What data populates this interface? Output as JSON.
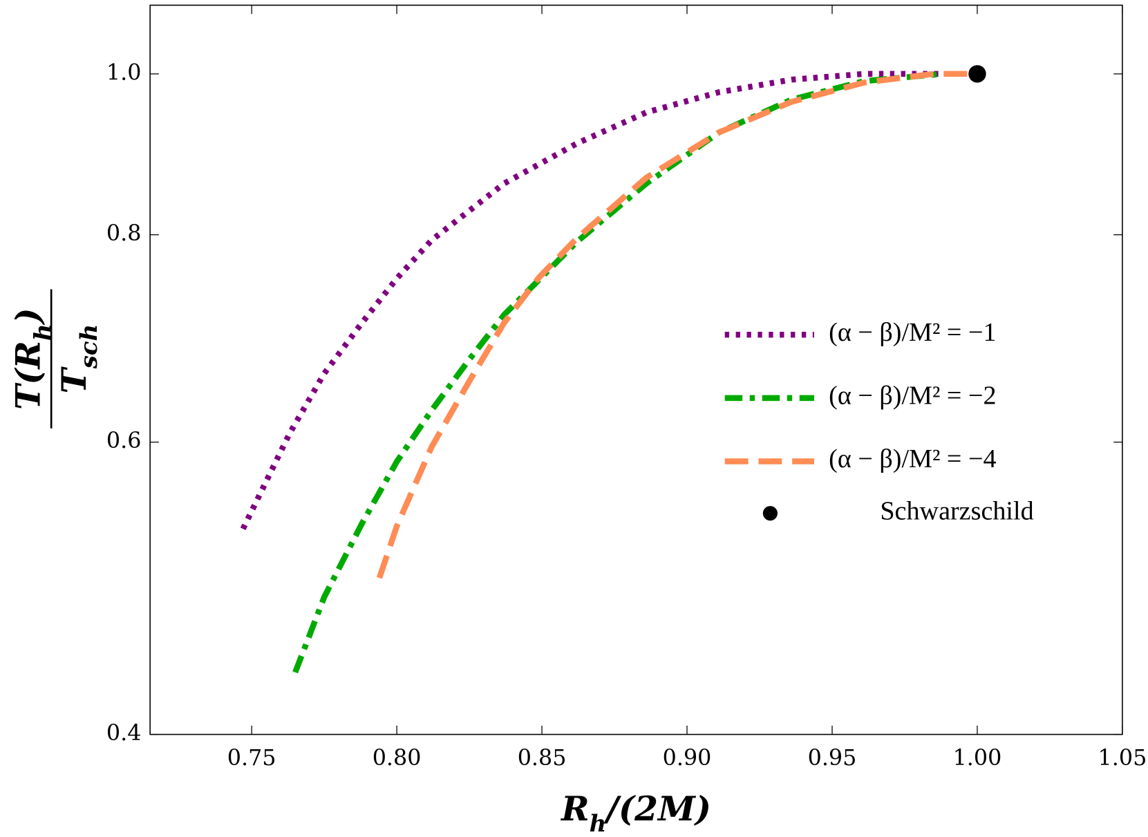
{
  "chart_data": {
    "type": "line",
    "xlabel": [
      "R",
      "h",
      "/(2M)"
    ],
    "ylabel": {
      "numerator": [
        "T(R",
        "h",
        ")"
      ],
      "denominator": [
        "T",
        "sch"
      ]
    },
    "xlim": [
      0.715,
      1.05
    ],
    "ylim": [
      0.4,
      1.1
    ],
    "yscale": "log",
    "xticks": [
      {
        "value": 0.75,
        "label": "0.75"
      },
      {
        "value": 0.8,
        "label": "0.80"
      },
      {
        "value": 0.85,
        "label": "0.85"
      },
      {
        "value": 0.9,
        "label": "0.90"
      },
      {
        "value": 0.95,
        "label": "0.95"
      },
      {
        "value": 1.0,
        "label": "1.00"
      },
      {
        "value": 1.05,
        "label": "1.05"
      }
    ],
    "yticks": [
      0.4,
      0.6,
      0.8,
      {
        "value": 1.0,
        "label": "1.0"
      }
    ],
    "series": [
      {
        "name": "(α − β)/M² = −1",
        "color": "#800080",
        "style": "dotted",
        "x": [
          0.747,
          0.763,
          0.775,
          0.788,
          0.8,
          0.812,
          0.837,
          0.862,
          0.886,
          0.911,
          0.936,
          0.961,
          0.988
        ],
        "values": [
          0.532,
          0.607,
          0.66,
          0.708,
          0.753,
          0.794,
          0.859,
          0.908,
          0.948,
          0.975,
          0.992,
          1.0,
          1.0
        ]
      },
      {
        "name": "(α − β)/M² = −2",
        "color": "#00aa00",
        "style": "dashdot",
        "x": [
          0.765,
          0.775,
          0.788,
          0.8,
          0.812,
          0.825,
          0.837,
          0.862,
          0.886,
          0.911,
          0.936,
          0.961,
          0.988
        ],
        "values": [
          0.436,
          0.484,
          0.536,
          0.584,
          0.627,
          0.673,
          0.716,
          0.792,
          0.859,
          0.922,
          0.965,
          0.99,
          1.0
        ]
      },
      {
        "name": "(α − β)/M² = −4",
        "color": "#ff8c55",
        "style": "dashed",
        "x": [
          0.794,
          0.8,
          0.812,
          0.825,
          0.837,
          0.849,
          0.862,
          0.886,
          0.911,
          0.936,
          0.961,
          0.985,
          1.0
        ],
        "values": [
          0.497,
          0.534,
          0.596,
          0.653,
          0.708,
          0.754,
          0.796,
          0.866,
          0.922,
          0.962,
          0.988,
          1.0,
          1.0
        ]
      }
    ],
    "points": [
      {
        "name": "Schwarzschild",
        "color": "#000000",
        "x": 1.0,
        "y": 1.0
      }
    ]
  }
}
